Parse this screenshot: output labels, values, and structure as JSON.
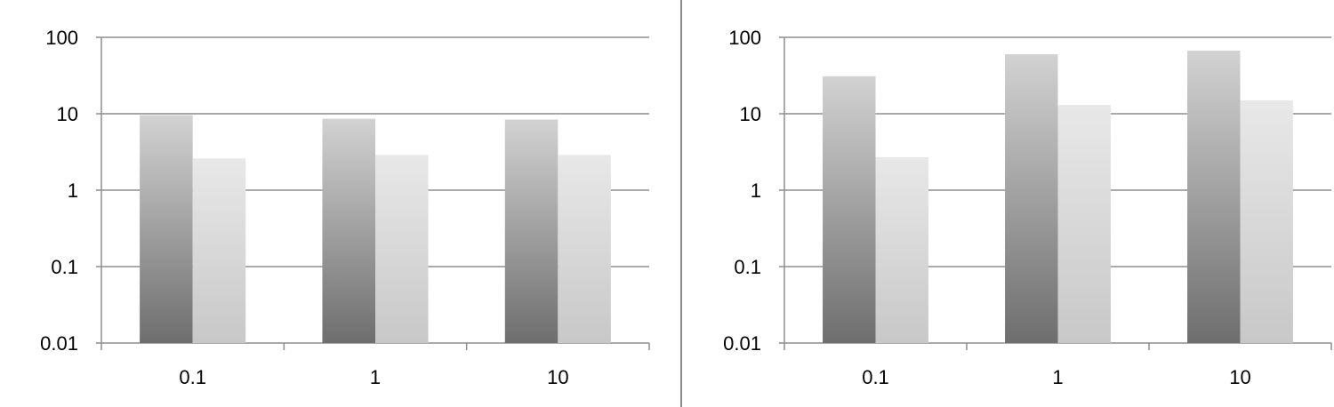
{
  "chart_data": [
    {
      "type": "bar",
      "y_scale": "log",
      "ylim": [
        0.01,
        100
      ],
      "y_ticks": [
        "0.01",
        "0.1",
        "1",
        "10",
        "100"
      ],
      "categories": [
        "0.1",
        "1",
        "10"
      ],
      "grid": true,
      "legend": "none",
      "title": "",
      "xlabel": "",
      "ylabel": "",
      "series": [
        {
          "values": [
            9.6,
            8.6,
            8.4
          ],
          "color": "#8c8c8c"
        },
        {
          "values": [
            2.6,
            2.9,
            2.9
          ],
          "color": "#dcdcdc"
        }
      ]
    },
    {
      "type": "bar",
      "y_scale": "log",
      "ylim": [
        0.01,
        100
      ],
      "y_ticks": [
        "0.01",
        "0.1",
        "1",
        "10",
        "100"
      ],
      "categories": [
        "0.1",
        "1",
        "10"
      ],
      "grid": true,
      "legend": "none",
      "title": "",
      "xlabel": "",
      "ylabel": "",
      "series": [
        {
          "values": [
            31,
            60,
            67
          ],
          "color": "#8c8c8c"
        },
        {
          "values": [
            2.7,
            13,
            15
          ],
          "color": "#dcdcdc"
        }
      ]
    }
  ]
}
